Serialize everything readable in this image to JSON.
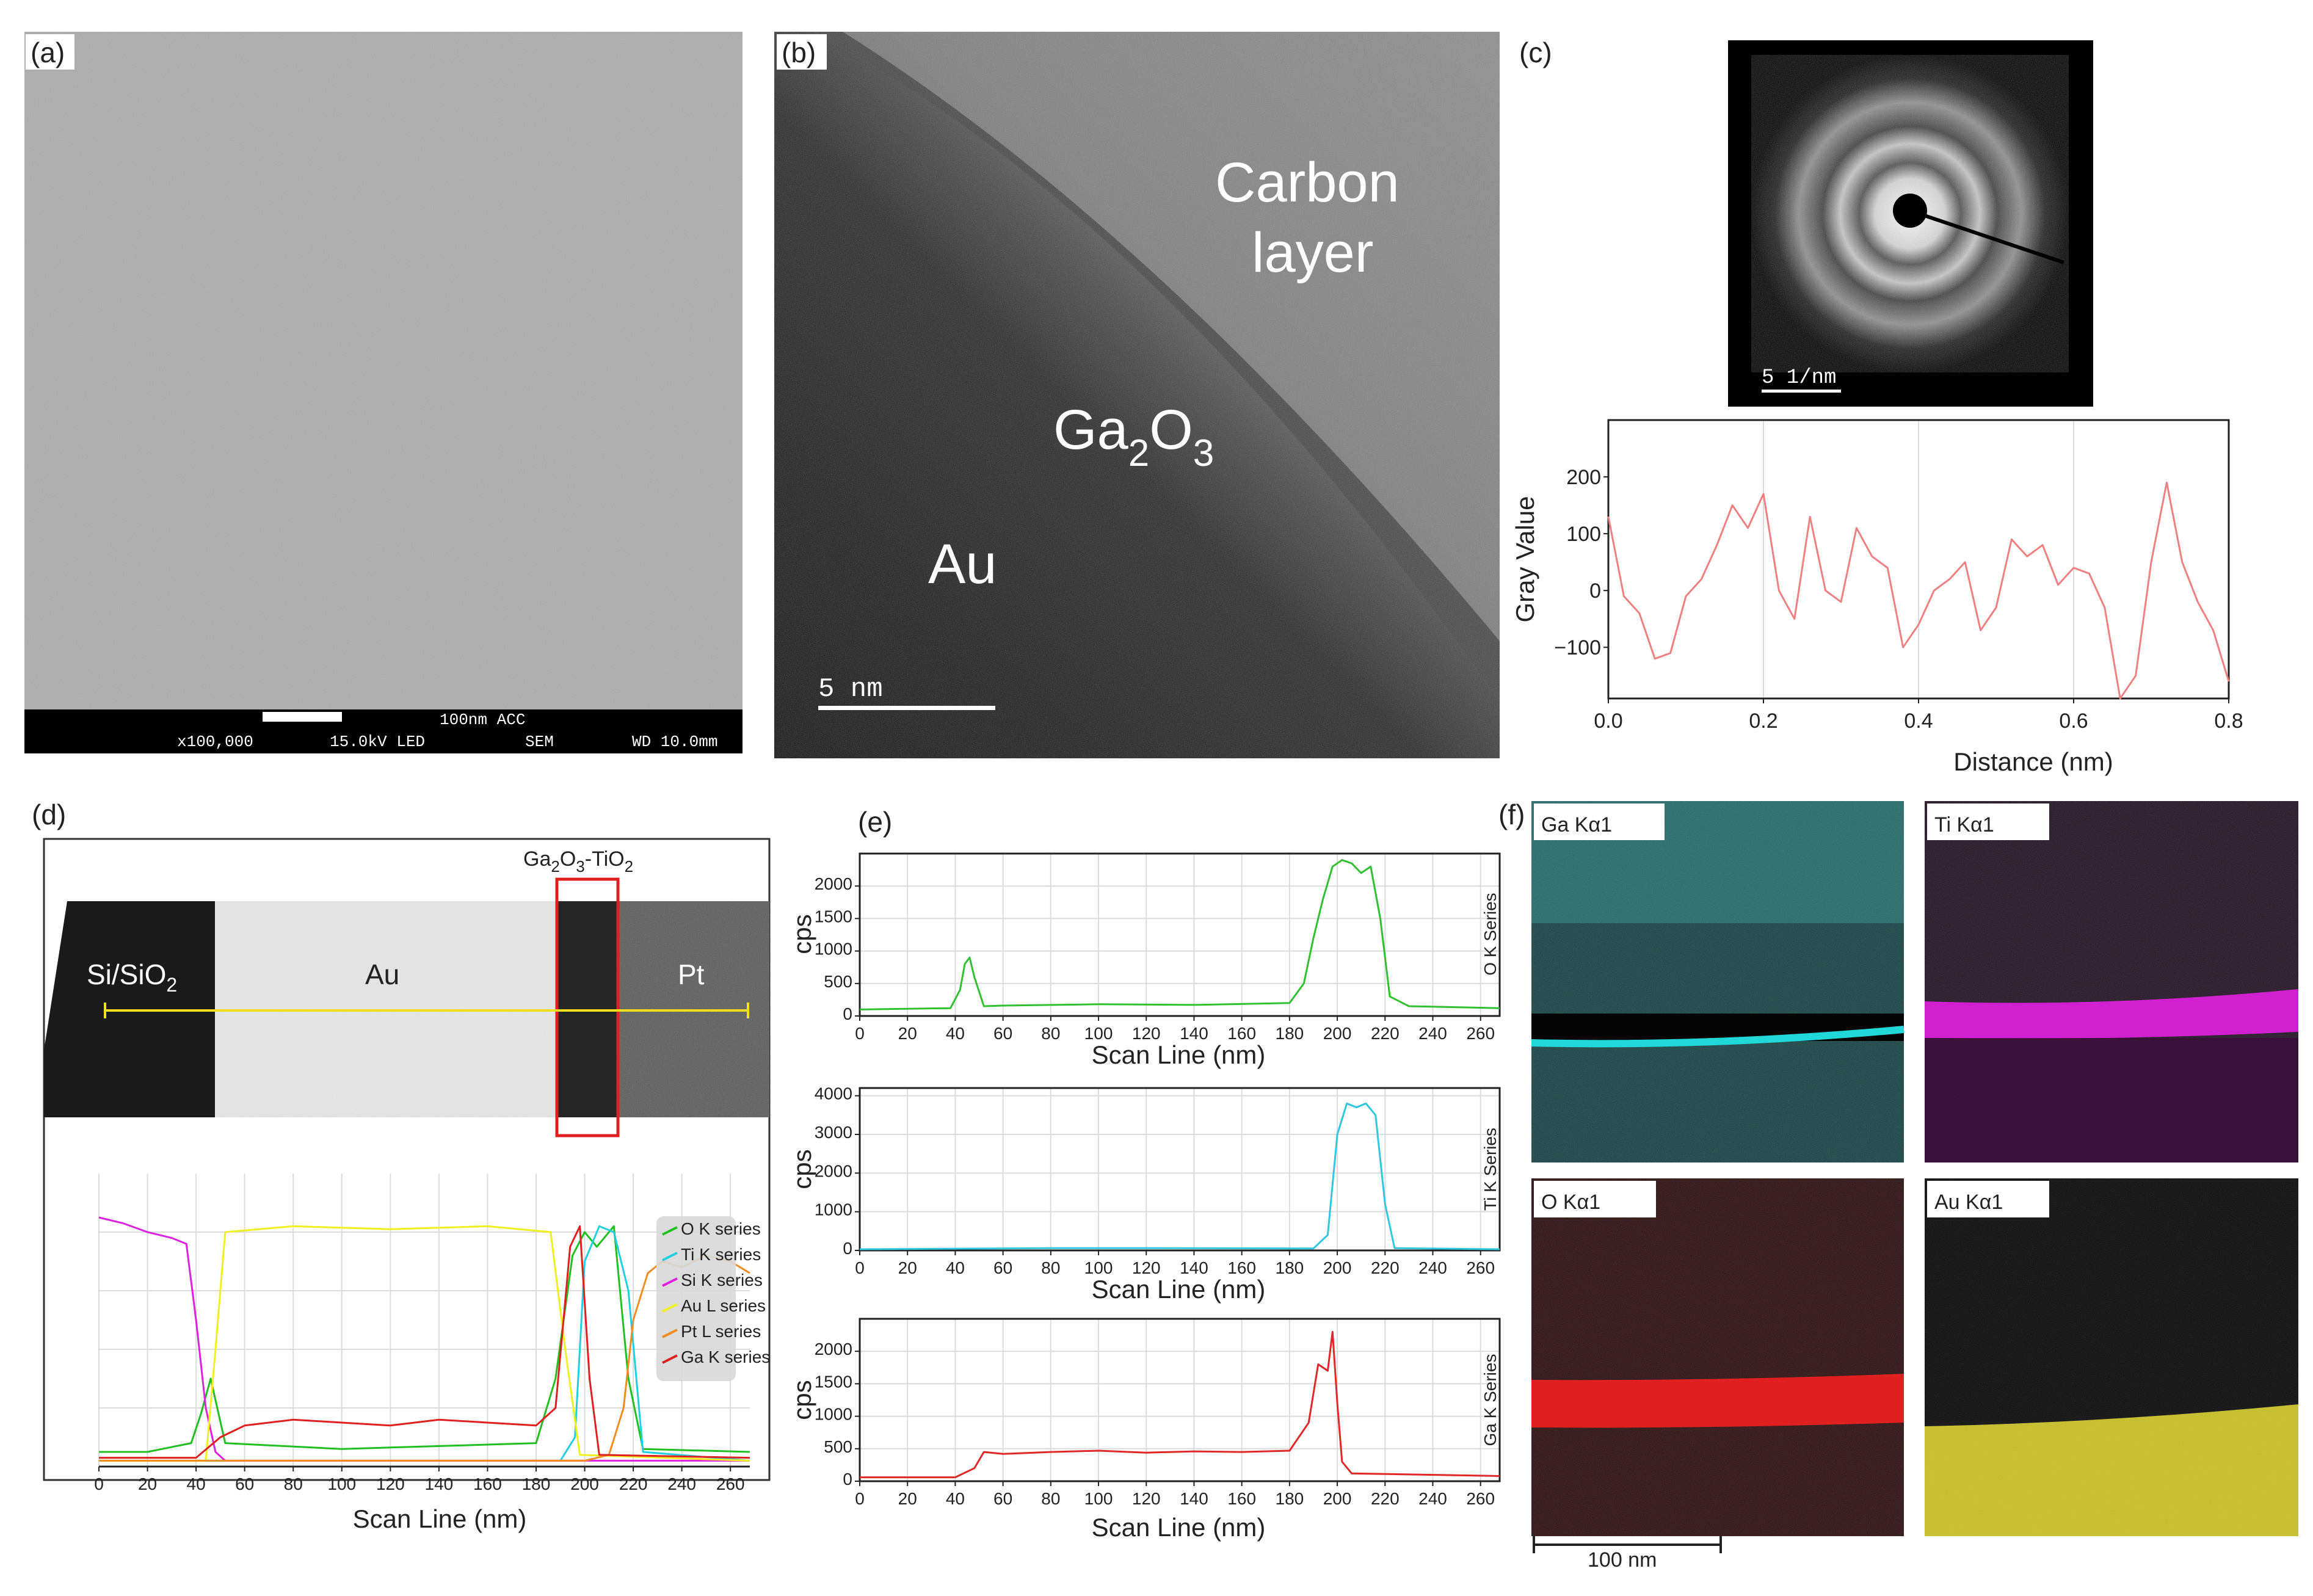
{
  "panels": {
    "a": {
      "label": "(a)",
      "info_bar": {
        "scale_text": "100nm ACC",
        "magnification": "x100,000",
        "voltage": "15.0kV LED",
        "mode": "SEM",
        "wd": "WD 10.0mm"
      }
    },
    "b": {
      "label": "(b)",
      "regions": {
        "carbon_1": "Carbon",
        "carbon_2": "layer",
        "oxide_main": "Ga",
        "oxide_sub1": "2",
        "oxide_mid": "O",
        "oxide_sub2": "3",
        "metal": "Au"
      },
      "scale_bar": "5 nm"
    },
    "c": {
      "label": "(c)",
      "diffraction_scale": "5 1/nm"
    },
    "d": {
      "label": "(d)",
      "box_label_main": "Ga",
      "box_label_sub1": "2",
      "box_label_mid": "O",
      "box_label_sub2": "3",
      "box_label_tail": "-TiO",
      "box_label_sub3": "2",
      "regions": {
        "sub_main": "Si/SiO",
        "sub_sub": "2",
        "au": "Au",
        "pt": "Pt"
      }
    },
    "e": {
      "label": "(e)"
    },
    "f": {
      "label": "(f)",
      "maps": [
        {
          "label": "Ga  Kα1",
          "color": "#20c8c8"
        },
        {
          "label": "Ti  Kα1",
          "color": "#d020d0"
        },
        {
          "label": "O  Kα1",
          "color": "#e02020"
        },
        {
          "label": "Au Kα1",
          "color": "#d8d020"
        }
      ],
      "scale_bar": "100 nm"
    }
  },
  "chart_data": [
    {
      "id": "c-profile",
      "type": "line",
      "xlabel": "Distance (nm)",
      "ylabel": "Gray Value",
      "xlim": [
        0.0,
        0.8
      ],
      "ylim": [
        -190,
        300
      ],
      "x_ticks": [
        "0.0",
        "0.2",
        "0.4",
        "0.6",
        "0.8"
      ],
      "y_ticks": [
        "200",
        "100",
        "0",
        "−100"
      ],
      "series": [
        {
          "color": "#f08080",
          "x": [
            0.0,
            0.02,
            0.04,
            0.06,
            0.08,
            0.1,
            0.12,
            0.14,
            0.16,
            0.18,
            0.2,
            0.22,
            0.24,
            0.26,
            0.28,
            0.3,
            0.32,
            0.34,
            0.36,
            0.38,
            0.4,
            0.42,
            0.44,
            0.46,
            0.48,
            0.5,
            0.52,
            0.54,
            0.56,
            0.58,
            0.6,
            0.62,
            0.64,
            0.66,
            0.68,
            0.7,
            0.72,
            0.74,
            0.76,
            0.78,
            0.8
          ],
          "y": [
            130,
            -10,
            -40,
            -120,
            -110,
            -10,
            20,
            80,
            150,
            110,
            170,
            0,
            -50,
            130,
            0,
            -20,
            110,
            60,
            40,
            -100,
            -60,
            0,
            20,
            50,
            -70,
            -30,
            90,
            60,
            80,
            10,
            40,
            30,
            -30,
            -190,
            -150,
            50,
            190,
            50,
            -20,
            -70,
            -160
          ]
        }
      ]
    },
    {
      "id": "d-linescan",
      "type": "line",
      "xlabel": "Scan Line (nm)",
      "xlim": [
        0,
        268
      ],
      "ylim": [
        0,
        100
      ],
      "x_ticks": [
        "0",
        "20",
        "40",
        "60",
        "80",
        "100",
        "120",
        "140",
        "160",
        "180",
        "200",
        "220",
        "240",
        "260"
      ],
      "legend": [
        "O K series",
        "Ti K series",
        "Si K series",
        "Au L series",
        "Pt L series",
        "Ga K series"
      ],
      "series": [
        {
          "name": "O K series",
          "color": "#20c020",
          "x": [
            0,
            20,
            38,
            42,
            46,
            52,
            100,
            180,
            188,
            195,
            200,
            205,
            212,
            218,
            224,
            268
          ],
          "y": [
            5,
            5,
            8,
            18,
            30,
            8,
            6,
            8,
            30,
            72,
            80,
            75,
            82,
            30,
            6,
            5
          ]
        },
        {
          "name": "Ti K series",
          "color": "#20d0e0",
          "x": [
            0,
            190,
            196,
            200,
            206,
            212,
            218,
            224,
            268
          ],
          "y": [
            2,
            2,
            10,
            70,
            82,
            80,
            60,
            5,
            2
          ]
        },
        {
          "name": "Si K series",
          "color": "#e020e0",
          "x": [
            0,
            10,
            20,
            30,
            36,
            40,
            44,
            48,
            52,
            268
          ],
          "y": [
            85,
            83,
            80,
            78,
            76,
            50,
            20,
            5,
            2,
            2
          ]
        },
        {
          "name": "Au L series",
          "color": "#f0f020",
          "x": [
            0,
            44,
            48,
            52,
            80,
            120,
            160,
            186,
            192,
            198,
            268
          ],
          "y": [
            2,
            2,
            40,
            80,
            82,
            81,
            82,
            80,
            40,
            4,
            2
          ]
        },
        {
          "name": "Pt L series",
          "color": "#f08c20",
          "x": [
            0,
            200,
            210,
            216,
            220,
            226,
            232,
            240,
            250,
            260,
            268
          ],
          "y": [
            2,
            2,
            4,
            20,
            50,
            66,
            70,
            68,
            72,
            70,
            66
          ]
        },
        {
          "name": "Ga K series",
          "color": "#e02020",
          "x": [
            0,
            40,
            50,
            60,
            80,
            100,
            120,
            140,
            160,
            180,
            188,
            194,
            198,
            202,
            206,
            268
          ],
          "y": [
            3,
            3,
            10,
            14,
            16,
            15,
            14,
            16,
            15,
            14,
            20,
            75,
            82,
            30,
            4,
            3
          ]
        }
      ]
    },
    {
      "id": "e-O",
      "type": "line",
      "xlabel": "Scan Line (nm)",
      "ylabel": "cps",
      "side_label": "O K Series",
      "xlim": [
        0,
        268
      ],
      "ylim": [
        0,
        2500
      ],
      "x_ticks": [
        "0",
        "20",
        "40",
        "60",
        "80",
        "100",
        "120",
        "140",
        "160",
        "180",
        "200",
        "220",
        "240",
        "260"
      ],
      "y_ticks": [
        "0",
        "500",
        "1000",
        "1500",
        "2000"
      ],
      "series": [
        {
          "color": "#30c030",
          "x": [
            0,
            38,
            42,
            44,
            46,
            48,
            52,
            60,
            100,
            140,
            180,
            186,
            190,
            194,
            198,
            202,
            206,
            210,
            214,
            218,
            222,
            230,
            268
          ],
          "y": [
            100,
            120,
            400,
            800,
            900,
            600,
            150,
            160,
            180,
            170,
            200,
            500,
            1200,
            1800,
            2300,
            2400,
            2350,
            2200,
            2300,
            1500,
            300,
            150,
            120
          ]
        }
      ]
    },
    {
      "id": "e-Ti",
      "type": "line",
      "xlabel": "Scan Line (nm)",
      "ylabel": "cps",
      "side_label": "Ti K Series",
      "xlim": [
        0,
        268
      ],
      "ylim": [
        0,
        4200
      ],
      "x_ticks": [
        "0",
        "20",
        "40",
        "60",
        "80",
        "100",
        "120",
        "140",
        "160",
        "180",
        "200",
        "220",
        "240",
        "260"
      ],
      "y_ticks": [
        "0",
        "1000",
        "2000",
        "3000",
        "4000"
      ],
      "series": [
        {
          "color": "#30c8e0",
          "x": [
            0,
            80,
            120,
            190,
            196,
            200,
            204,
            208,
            212,
            216,
            220,
            224,
            268
          ],
          "y": [
            30,
            60,
            60,
            50,
            400,
            3000,
            3800,
            3700,
            3800,
            3500,
            1200,
            60,
            30
          ]
        }
      ]
    },
    {
      "id": "e-Ga",
      "type": "line",
      "xlabel": "Scan Line (nm)",
      "ylabel": "cps",
      "side_label": "Ga K Series",
      "xlim": [
        0,
        268
      ],
      "ylim": [
        0,
        2500
      ],
      "x_ticks": [
        "0",
        "20",
        "40",
        "60",
        "80",
        "100",
        "120",
        "140",
        "160",
        "180",
        "200",
        "220",
        "240",
        "260"
      ],
      "y_ticks": [
        "0",
        "500",
        "1000",
        "1500",
        "2000"
      ],
      "series": [
        {
          "color": "#e02828",
          "x": [
            0,
            40,
            48,
            52,
            60,
            80,
            100,
            120,
            140,
            160,
            180,
            188,
            192,
            196,
            198,
            200,
            202,
            206,
            268
          ],
          "y": [
            60,
            60,
            200,
            450,
            420,
            450,
            470,
            440,
            460,
            450,
            470,
            900,
            1800,
            1700,
            2300,
            1200,
            300,
            120,
            80
          ]
        }
      ]
    }
  ]
}
